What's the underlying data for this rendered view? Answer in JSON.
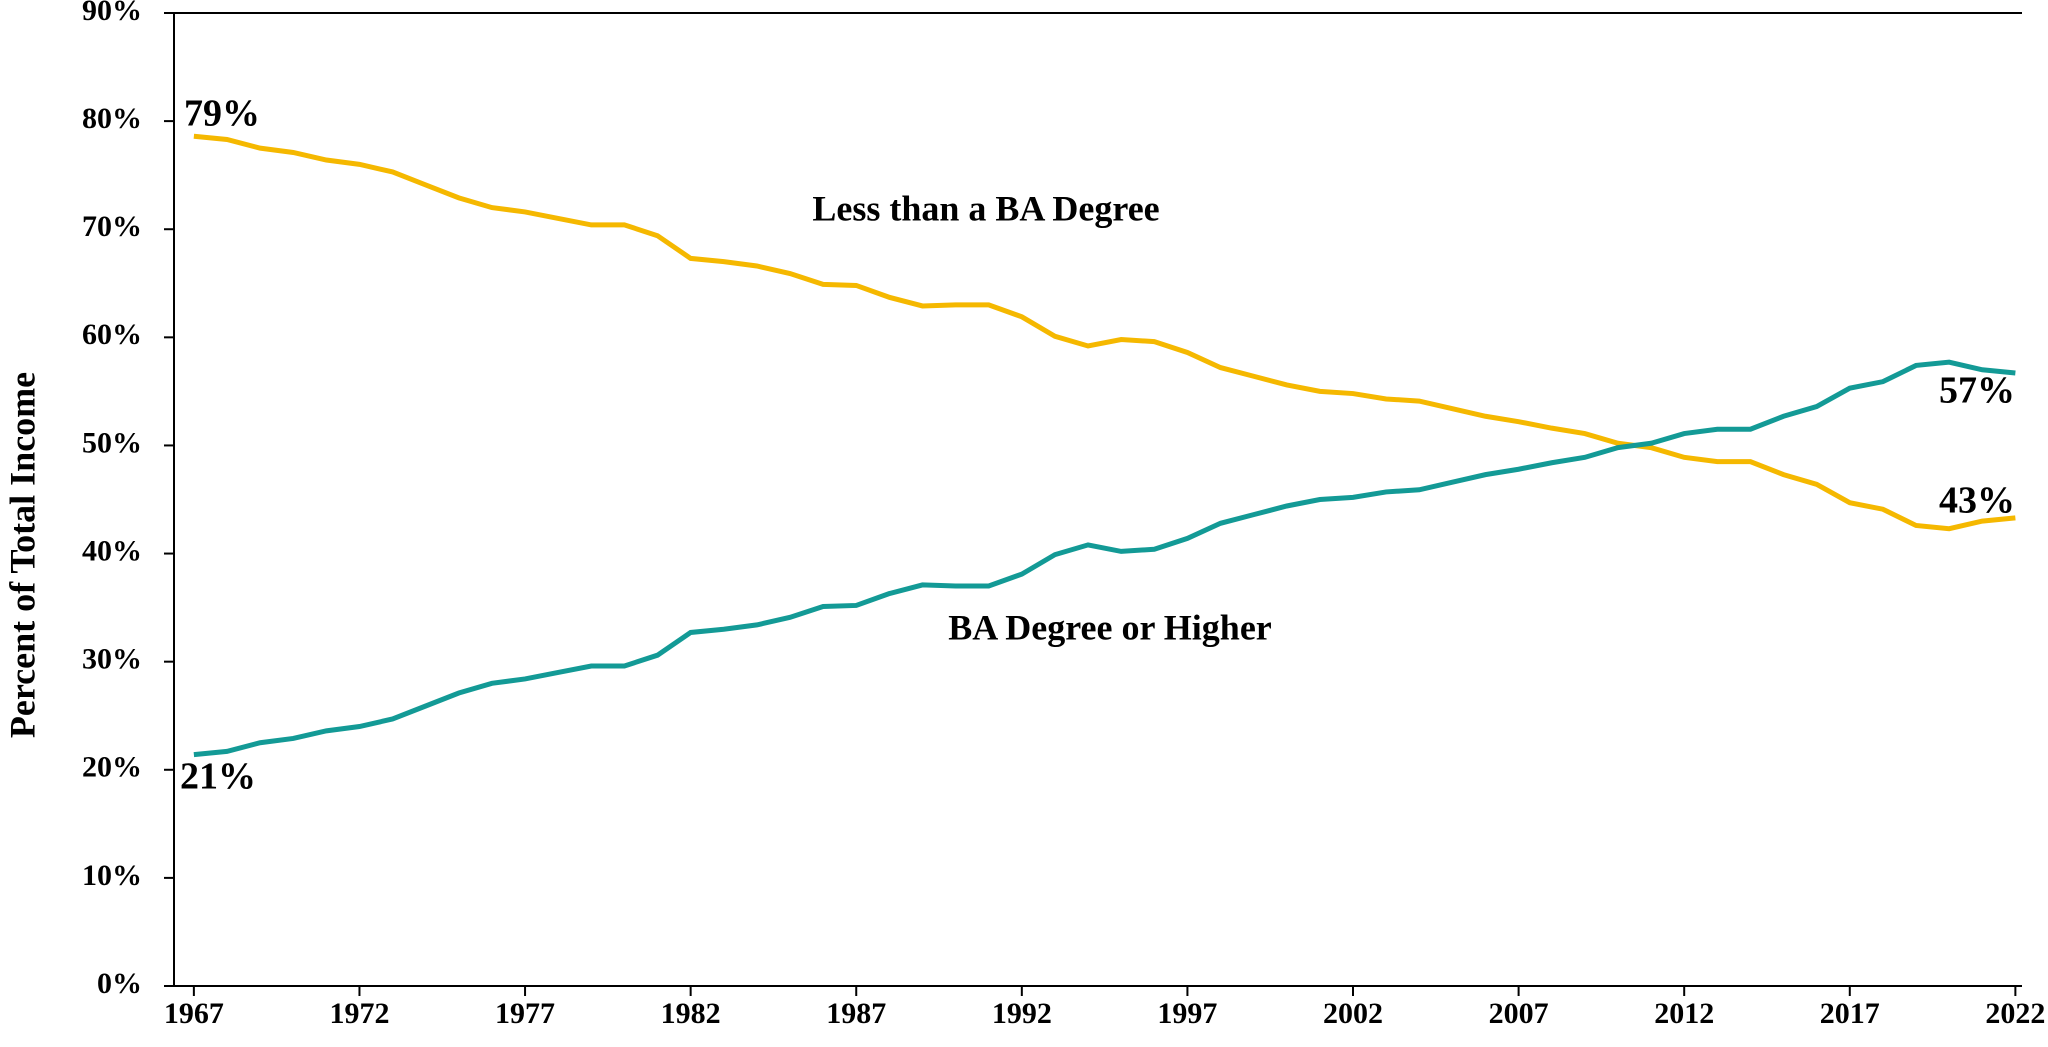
{
  "chart_data": {
    "type": "line",
    "y_label": "Percent of Total Income",
    "x": [
      1967,
      1968,
      1969,
      1970,
      1971,
      1972,
      1973,
      1974,
      1975,
      1976,
      1977,
      1978,
      1979,
      1980,
      1981,
      1982,
      1983,
      1984,
      1985,
      1986,
      1987,
      1988,
      1989,
      1990,
      1991,
      1992,
      1993,
      1994,
      1995,
      1996,
      1997,
      1998,
      1999,
      2000,
      2001,
      2002,
      2003,
      2004,
      2005,
      2006,
      2007,
      2008,
      2009,
      2010,
      2011,
      2012,
      2013,
      2014,
      2015,
      2016,
      2017,
      2018,
      2019,
      2020,
      2021,
      2022
    ],
    "series": [
      {
        "name": "Less than a BA Degree",
        "color": "#f5b800",
        "values": [
          78.6,
          78.3,
          77.5,
          77.1,
          76.4,
          76.0,
          75.3,
          74.1,
          72.9,
          72.0,
          71.6,
          71.0,
          70.4,
          70.4,
          69.4,
          67.3,
          67.0,
          66.6,
          65.9,
          64.9,
          64.8,
          63.7,
          62.9,
          63.0,
          63.0,
          61.9,
          60.1,
          59.2,
          59.8,
          59.6,
          58.6,
          57.2,
          56.4,
          55.6,
          55.0,
          54.8,
          54.3,
          54.1,
          53.4,
          52.7,
          52.2,
          51.6,
          51.1,
          50.2,
          49.8,
          48.9,
          48.5,
          48.5,
          47.3,
          46.4,
          44.7,
          44.1,
          42.6,
          42.3,
          43.0,
          43.3
        ]
      },
      {
        "name": "BA Degree or Higher",
        "color": "#139a96",
        "values": [
          21.4,
          21.7,
          22.5,
          22.9,
          23.6,
          24.0,
          24.7,
          25.9,
          27.1,
          28.0,
          28.4,
          29.0,
          29.6,
          29.6,
          30.6,
          32.7,
          33.0,
          33.4,
          34.1,
          35.1,
          35.2,
          36.3,
          37.1,
          37.0,
          37.0,
          38.1,
          39.9,
          40.8,
          40.2,
          40.4,
          41.4,
          42.8,
          43.6,
          44.4,
          45.0,
          45.2,
          45.7,
          45.9,
          46.6,
          47.3,
          47.8,
          48.4,
          48.9,
          49.8,
          50.2,
          51.1,
          51.5,
          51.5,
          52.7,
          53.6,
          55.3,
          55.9,
          57.4,
          57.7,
          57.0,
          56.7
        ]
      }
    ],
    "annotations": [
      "79%",
      "21%",
      "57%",
      "43%"
    ],
    "xlim": [
      1966.4,
      2022.2
    ],
    "xticks": [
      1967,
      1972,
      1977,
      1982,
      1987,
      1992,
      1997,
      2002,
      2007,
      2012,
      2017,
      2022
    ],
    "ylim": [
      0,
      90
    ],
    "yticks": [
      {
        "value": 0,
        "label": "0%"
      },
      {
        "value": 10,
        "label": "10%"
      },
      {
        "value": 20,
        "label": "20%"
      },
      {
        "value": 30,
        "label": "30%"
      },
      {
        "value": 40,
        "label": "40%"
      },
      {
        "value": 50,
        "label": "50%"
      },
      {
        "value": 60,
        "label": "60%"
      },
      {
        "value": 70,
        "label": "70%"
      },
      {
        "value": 80,
        "label": "80%"
      },
      {
        "value": 90,
        "label": "90%"
      }
    ],
    "grid": false
  }
}
